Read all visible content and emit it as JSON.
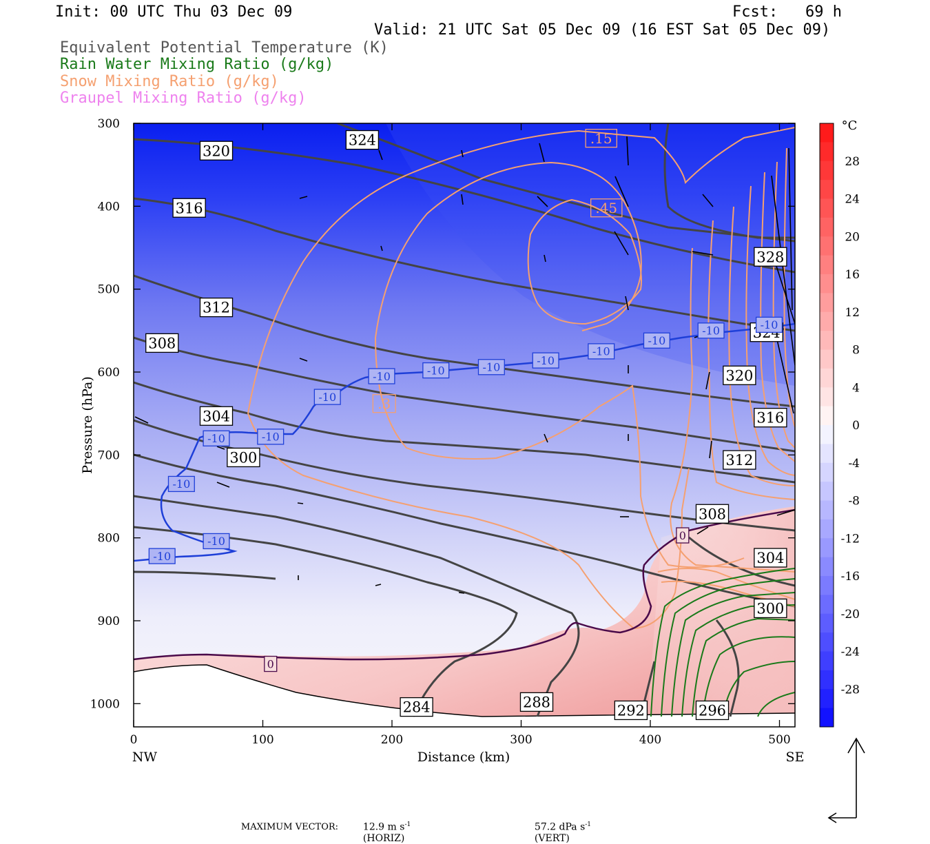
{
  "header": {
    "init": "Init: 00 UTC Thu 03 Dec 09",
    "fcst": "Fcst:   69 h",
    "valid": "Valid: 21 UTC Sat 05 Dec 09 (16 EST Sat 05 Dec 09)"
  },
  "legend": {
    "items": [
      {
        "label": "Equivalent Potential Temperature (K)",
        "color": "#555555"
      },
      {
        "label": "Rain Water Mixing Ratio (g/kg)",
        "color": "#1a7a1a"
      },
      {
        "label": "Snow Mixing Ratio (g/kg)",
        "color": "#f5a070"
      },
      {
        "label": "Graupel Mixing Ratio (g/kg)",
        "color": "#ee82ee"
      }
    ]
  },
  "footer": {
    "prefix": "MAXIMUM VECTOR:",
    "horiz_value": "12.9 m s",
    "horiz_exp": "-1",
    "horiz_tag": "(HORIZ)",
    "vert_value": "57.2 dPa s",
    "vert_exp": "-1",
    "vert_tag": "(VERT)"
  },
  "chart_data": {
    "type": "cross-section",
    "xlabel": "Distance (km)",
    "ylabel": "Pressure (hPa)",
    "xlim": [
      0,
      512
    ],
    "ylim": [
      1028,
      300
    ],
    "x_ticks": [
      0,
      100,
      200,
      300,
      400,
      500
    ],
    "y_ticks": [
      300,
      400,
      500,
      600,
      700,
      800,
      900,
      1000
    ],
    "x_end_labels": {
      "left": "NW",
      "right": "SE"
    },
    "colorbar": {
      "unit": "°C",
      "levels": [
        -32,
        -30,
        -28,
        -26,
        -24,
        -22,
        -20,
        -18,
        -16,
        -14,
        -12,
        -10,
        -8,
        -6,
        -4,
        -2,
        0,
        2,
        4,
        6,
        8,
        10,
        12,
        14,
        16,
        18,
        20,
        22,
        24,
        26,
        28,
        30,
        32
      ],
      "tick_labels": [
        "28",
        "24",
        "20",
        "16",
        "12",
        "8",
        "4",
        "0",
        "-4",
        "-8",
        "-12",
        "-16",
        "-20",
        "-24",
        "-28"
      ]
    },
    "theta_e_labels": [
      {
        "text": "320",
        "x": 64,
        "p": 333
      },
      {
        "text": "324",
        "x": 177,
        "p": 320
      },
      {
        "text": "316",
        "x": 43,
        "p": 402
      },
      {
        "text": "312",
        "x": 64,
        "p": 522
      },
      {
        "text": "308",
        "x": 22,
        "p": 565
      },
      {
        "text": "304",
        "x": 64,
        "p": 653
      },
      {
        "text": "300",
        "x": 85,
        "p": 703
      },
      {
        "text": "328",
        "x": 493,
        "p": 461
      },
      {
        "text": "324",
        "x": 490,
        "p": 552
      },
      {
        "text": "320",
        "x": 469,
        "p": 604
      },
      {
        "text": "316",
        "x": 493,
        "p": 655
      },
      {
        "text": "312",
        "x": 469,
        "p": 706
      },
      {
        "text": "308",
        "x": 448,
        "p": 771
      },
      {
        "text": "304",
        "x": 493,
        "p": 824
      },
      {
        "text": "300",
        "x": 493,
        "p": 885
      },
      {
        "text": "284",
        "x": 219,
        "p": 1004
      },
      {
        "text": "288",
        "x": 312,
        "p": 998
      },
      {
        "text": "292",
        "x": 385,
        "p": 1008
      },
      {
        "text": "296",
        "x": 448,
        "p": 1008
      }
    ],
    "isotherm_labels": [
      {
        "text": "-10",
        "x": 22,
        "p": 822
      },
      {
        "text": "-10",
        "x": 64,
        "p": 804
      },
      {
        "text": "-10",
        "x": 37,
        "p": 735
      },
      {
        "text": "-10",
        "x": 64,
        "p": 680
      },
      {
        "text": "-10",
        "x": 106,
        "p": 678
      },
      {
        "text": "-10",
        "x": 150,
        "p": 630
      },
      {
        "text": "-10",
        "x": 192,
        "p": 605
      },
      {
        "text": "-10",
        "x": 234,
        "p": 598
      },
      {
        "text": "-10",
        "x": 277,
        "p": 594
      },
      {
        "text": "-10",
        "x": 319,
        "p": 586
      },
      {
        "text": "-10",
        "x": 362,
        "p": 575
      },
      {
        "text": "-10",
        "x": 405,
        "p": 562
      },
      {
        "text": "-10",
        "x": 447,
        "p": 550
      },
      {
        "text": "-10",
        "x": 492,
        "p": 543
      },
      {
        "text": "0",
        "x": 106,
        "p": 952
      },
      {
        "text": "0",
        "x": 425,
        "p": 797
      }
    ],
    "snow_labels": [
      {
        "text": ".15",
        "x": 362,
        "p": 318
      },
      {
        "text": ".45",
        "x": 366,
        "p": 402
      },
      {
        "text": ".3",
        "x": 194,
        "p": 638
      }
    ]
  }
}
